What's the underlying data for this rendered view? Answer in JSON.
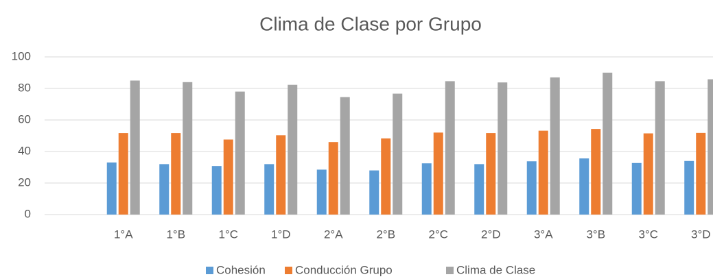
{
  "chart_data": {
    "type": "bar",
    "title": "Clima de Clase por Grupo",
    "categories": [
      null,
      "1°A",
      "1°B",
      "1°C",
      "1°D",
      "2°A",
      "2°B",
      "2°C",
      "2°D",
      "3°A",
      "3°B",
      "3°C",
      "3°D"
    ],
    "series": [
      {
        "name": "Cohesión",
        "color": "#5b9bd5",
        "values": [
          null,
          33,
          32,
          30.8,
          32,
          28.5,
          28,
          32.5,
          32,
          33.8,
          35.6,
          32.7,
          34
        ]
      },
      {
        "name": "Conducción Grupo",
        "color": "#ed7d31",
        "values": [
          null,
          51.7,
          51.7,
          47.6,
          50.3,
          46,
          48.3,
          52,
          51.7,
          53.2,
          54.3,
          51.5,
          51.8
        ]
      },
      {
        "name": "Clima de Clase",
        "color": "#a5a5a5",
        "values": [
          null,
          85,
          84,
          78,
          82.3,
          74.5,
          76.7,
          84.6,
          83.8,
          87,
          90,
          84.6,
          85.8
        ]
      }
    ],
    "ylim": [
      0,
      100
    ],
    "yticks": [
      0,
      20,
      40,
      60,
      80,
      100
    ],
    "grid": true,
    "legend": "bottom"
  }
}
